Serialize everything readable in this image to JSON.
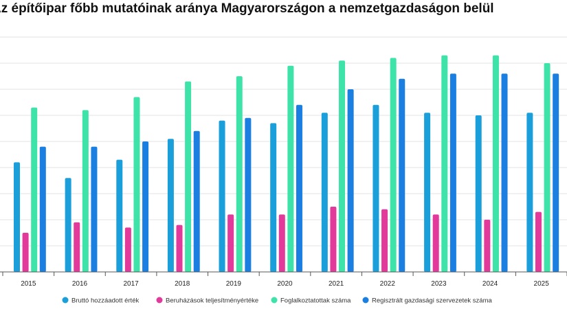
{
  "chart_data": {
    "type": "bar",
    "title": "Az építőipar főbb mutatóinak aránya Magyarországon a nemzetgazdaságon belül",
    "xlabel": "",
    "ylabel": "",
    "categories": [
      "2015",
      "2016",
      "2017",
      "2018",
      "2019",
      "2020",
      "2021",
      "2022",
      "2023",
      "2024",
      "2025"
    ],
    "ylim": [
      0,
      9
    ],
    "grid": true,
    "legend": "bottom",
    "series": [
      {
        "name": "Bruttó hozzáadott érték",
        "color": "#1a9fdb",
        "values": [
          4.2,
          3.6,
          4.3,
          5.1,
          5.8,
          5.7,
          6.1,
          6.4,
          6.1,
          6.0,
          6.1
        ]
      },
      {
        "name": "Beruházások teljesítményértéke",
        "color": "#e23a9b",
        "values": [
          1.5,
          1.9,
          1.7,
          1.8,
          2.2,
          2.2,
          2.5,
          2.4,
          2.2,
          2.0,
          2.3
        ]
      },
      {
        "name": "Foglalkoztatottak száma",
        "color": "#3de3a8",
        "values": [
          6.3,
          6.2,
          6.7,
          7.3,
          7.5,
          7.9,
          8.1,
          8.2,
          8.3,
          8.3,
          8.0
        ]
      },
      {
        "name": "Regisztrált gazdasági szervezetek száma",
        "color": "#1a7fe0",
        "values": [
          4.8,
          4.8,
          5.0,
          5.4,
          5.9,
          6.4,
          7.0,
          7.4,
          7.6,
          7.6,
          7.6
        ]
      }
    ]
  }
}
